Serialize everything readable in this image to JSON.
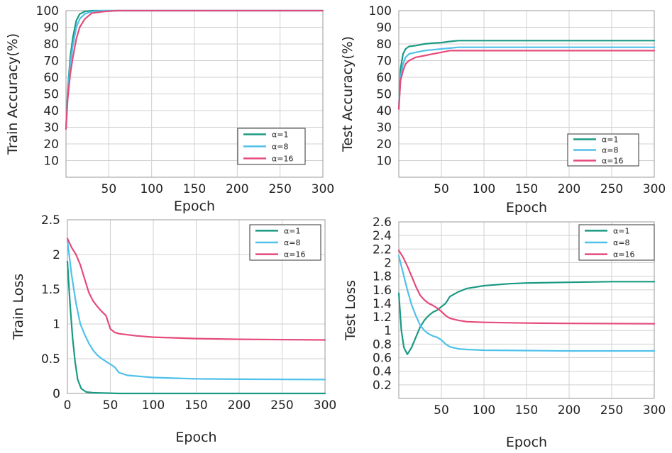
{
  "chart_data": [
    {
      "type": "line",
      "id": "train-accuracy",
      "xlabel": "Epoch",
      "ylabel": "Train Accuracy(%)",
      "xlim": [
        0,
        300
      ],
      "ylim": [
        0,
        100
      ],
      "xticks": [
        50,
        100,
        150,
        200,
        250,
        300
      ],
      "yticks": [
        10,
        20,
        30,
        40,
        50,
        60,
        70,
        80,
        90,
        100
      ],
      "grid": true,
      "legend_position": "bottom-right",
      "series": [
        {
          "name": "α=1",
          "color": "#1a9a82",
          "points": [
            [
              0,
              29
            ],
            [
              2,
              52
            ],
            [
              5,
              72
            ],
            [
              8,
              84
            ],
            [
              12,
              94
            ],
            [
              16,
              98
            ],
            [
              22,
              99.5
            ],
            [
              30,
              100
            ],
            [
              50,
              100
            ],
            [
              100,
              100
            ],
            [
              300,
              100
            ]
          ]
        },
        {
          "name": "α=8",
          "color": "#4fc1ea",
          "points": [
            [
              0,
              29
            ],
            [
              2,
              50
            ],
            [
              5,
              68
            ],
            [
              8,
              79
            ],
            [
              12,
              90
            ],
            [
              16,
              95
            ],
            [
              22,
              98
            ],
            [
              30,
              99.5
            ],
            [
              45,
              100
            ],
            [
              100,
              100
            ],
            [
              300,
              100
            ]
          ]
        },
        {
          "name": "α=16",
          "color": "#e54b7a",
          "points": [
            [
              0,
              29
            ],
            [
              2,
              47
            ],
            [
              5,
              62
            ],
            [
              8,
              72
            ],
            [
              12,
              83
            ],
            [
              16,
              90
            ],
            [
              22,
              95
            ],
            [
              30,
              98.5
            ],
            [
              45,
              99.5
            ],
            [
              60,
              100
            ],
            [
              300,
              100
            ]
          ]
        }
      ]
    },
    {
      "type": "line",
      "id": "test-accuracy",
      "xlabel": "Epoch",
      "ylabel": "Test Accuracy(%)",
      "xlim": [
        0,
        300
      ],
      "ylim": [
        0,
        100
      ],
      "xticks": [
        50,
        100,
        150,
        200,
        250,
        300
      ],
      "yticks": [
        10,
        20,
        30,
        40,
        50,
        60,
        70,
        80,
        90,
        100
      ],
      "grid": true,
      "legend_position": "bottom-right",
      "series": [
        {
          "name": "α=1",
          "color": "#1a9a82",
          "points": [
            [
              0,
              41
            ],
            [
              2,
              65
            ],
            [
              5,
              74
            ],
            [
              8,
              77
            ],
            [
              12,
              78.5
            ],
            [
              20,
              79
            ],
            [
              30,
              80
            ],
            [
              40,
              80.5
            ],
            [
              50,
              80.8
            ],
            [
              60,
              81.5
            ],
            [
              70,
              82
            ],
            [
              300,
              82
            ]
          ]
        },
        {
          "name": "α=8",
          "color": "#4fc1ea",
          "points": [
            [
              0,
              41
            ],
            [
              2,
              60
            ],
            [
              5,
              68
            ],
            [
              8,
              72
            ],
            [
              12,
              74
            ],
            [
              20,
              75
            ],
            [
              30,
              76
            ],
            [
              40,
              76.5
            ],
            [
              50,
              77
            ],
            [
              60,
              77.5
            ],
            [
              70,
              78
            ],
            [
              300,
              78
            ]
          ]
        },
        {
          "name": "α=16",
          "color": "#e54b7a",
          "points": [
            [
              0,
              41
            ],
            [
              2,
              58
            ],
            [
              5,
              64
            ],
            [
              8,
              68
            ],
            [
              12,
              70
            ],
            [
              20,
              72
            ],
            [
              30,
              73
            ],
            [
              40,
              74
            ],
            [
              50,
              75
            ],
            [
              60,
              76
            ],
            [
              70,
              76
            ],
            [
              300,
              76
            ]
          ]
        }
      ]
    },
    {
      "type": "line",
      "id": "train-loss",
      "xlabel": "Epoch",
      "ylabel": "Train Loss",
      "xlim": [
        0,
        300
      ],
      "ylim": [
        0,
        2.5
      ],
      "xticks": [
        0,
        50,
        100,
        150,
        200,
        250,
        300
      ],
      "yticks": [
        0,
        0.5,
        1,
        1.5,
        2,
        2.5
      ],
      "ytick_labels": [
        "0",
        "0.5",
        "1",
        "1.5",
        "2",
        "2.5"
      ],
      "grid": true,
      "legend_position": "top-right",
      "series": [
        {
          "name": "α=1",
          "color": "#1a9a82",
          "points": [
            [
              0,
              1.9
            ],
            [
              3,
              1.3
            ],
            [
              6,
              0.8
            ],
            [
              9,
              0.45
            ],
            [
              12,
              0.2
            ],
            [
              16,
              0.07
            ],
            [
              22,
              0.02
            ],
            [
              30,
              0.01
            ],
            [
              60,
              0.0
            ],
            [
              300,
              0.0
            ]
          ]
        },
        {
          "name": "α=8",
          "color": "#4fc1ea",
          "points": [
            [
              0,
              2.2
            ],
            [
              5,
              1.7
            ],
            [
              10,
              1.3
            ],
            [
              15,
              1.0
            ],
            [
              20,
              0.85
            ],
            [
              25,
              0.72
            ],
            [
              30,
              0.62
            ],
            [
              35,
              0.55
            ],
            [
              40,
              0.5
            ],
            [
              45,
              0.46
            ],
            [
              50,
              0.42
            ],
            [
              55,
              0.38
            ],
            [
              60,
              0.3
            ],
            [
              70,
              0.26
            ],
            [
              80,
              0.25
            ],
            [
              100,
              0.23
            ],
            [
              150,
              0.21
            ],
            [
              200,
              0.205
            ],
            [
              300,
              0.2
            ]
          ]
        },
        {
          "name": "α=16",
          "color": "#e54b7a",
          "points": [
            [
              0,
              2.23
            ],
            [
              5,
              2.1
            ],
            [
              10,
              2.0
            ],
            [
              15,
              1.85
            ],
            [
              20,
              1.65
            ],
            [
              25,
              1.45
            ],
            [
              30,
              1.33
            ],
            [
              35,
              1.25
            ],
            [
              40,
              1.18
            ],
            [
              45,
              1.12
            ],
            [
              50,
              0.93
            ],
            [
              55,
              0.88
            ],
            [
              60,
              0.86
            ],
            [
              80,
              0.83
            ],
            [
              100,
              0.81
            ],
            [
              150,
              0.79
            ],
            [
              200,
              0.78
            ],
            [
              300,
              0.77
            ]
          ]
        }
      ]
    },
    {
      "type": "line",
      "id": "test-loss",
      "xlabel": "Epoch",
      "ylabel": "Test Loss",
      "xlim": [
        0,
        300
      ],
      "ylim": [
        0,
        2.6
      ],
      "xticks": [
        50,
        100,
        150,
        200,
        250,
        300
      ],
      "yticks": [
        0.2,
        0.4,
        0.6,
        0.8,
        1,
        1.2,
        1.4,
        1.6,
        1.8,
        2,
        2.2,
        2.4,
        2.6
      ],
      "ytick_labels": [
        "0.2",
        "0.4",
        "0.6",
        "0.8",
        "1",
        "1.2",
        "1.4",
        "1.6",
        "1.8",
        "2",
        "2.2",
        "2.4",
        "2.6"
      ],
      "grid": true,
      "legend_position": "top-right",
      "series": [
        {
          "name": "α=1",
          "color": "#1a9a82",
          "points": [
            [
              0,
              1.55
            ],
            [
              3,
              1.0
            ],
            [
              6,
              0.75
            ],
            [
              10,
              0.65
            ],
            [
              15,
              0.75
            ],
            [
              20,
              0.9
            ],
            [
              25,
              1.05
            ],
            [
              30,
              1.15
            ],
            [
              35,
              1.22
            ],
            [
              40,
              1.27
            ],
            [
              45,
              1.3
            ],
            [
              50,
              1.35
            ],
            [
              55,
              1.4
            ],
            [
              60,
              1.5
            ],
            [
              70,
              1.57
            ],
            [
              80,
              1.62
            ],
            [
              100,
              1.66
            ],
            [
              130,
              1.69
            ],
            [
              150,
              1.7
            ],
            [
              200,
              1.71
            ],
            [
              250,
              1.72
            ],
            [
              300,
              1.72
            ]
          ]
        },
        {
          "name": "α=8",
          "color": "#4fc1ea",
          "points": [
            [
              0,
              2.1
            ],
            [
              5,
              1.85
            ],
            [
              10,
              1.6
            ],
            [
              15,
              1.38
            ],
            [
              20,
              1.22
            ],
            [
              25,
              1.08
            ],
            [
              30,
              1.0
            ],
            [
              35,
              0.95
            ],
            [
              40,
              0.92
            ],
            [
              45,
              0.9
            ],
            [
              50,
              0.86
            ],
            [
              55,
              0.8
            ],
            [
              60,
              0.76
            ],
            [
              70,
              0.73
            ],
            [
              80,
              0.72
            ],
            [
              100,
              0.71
            ],
            [
              150,
              0.705
            ],
            [
              200,
              0.7
            ],
            [
              300,
              0.7
            ]
          ]
        },
        {
          "name": "α=16",
          "color": "#e54b7a",
          "points": [
            [
              0,
              2.18
            ],
            [
              5,
              2.08
            ],
            [
              10,
              1.95
            ],
            [
              15,
              1.8
            ],
            [
              20,
              1.65
            ],
            [
              25,
              1.52
            ],
            [
              30,
              1.45
            ],
            [
              35,
              1.4
            ],
            [
              40,
              1.37
            ],
            [
              45,
              1.33
            ],
            [
              50,
              1.28
            ],
            [
              55,
              1.22
            ],
            [
              60,
              1.18
            ],
            [
              70,
              1.15
            ],
            [
              80,
              1.13
            ],
            [
              100,
              1.12
            ],
            [
              150,
              1.11
            ],
            [
              200,
              1.105
            ],
            [
              300,
              1.1
            ]
          ]
        }
      ]
    }
  ]
}
